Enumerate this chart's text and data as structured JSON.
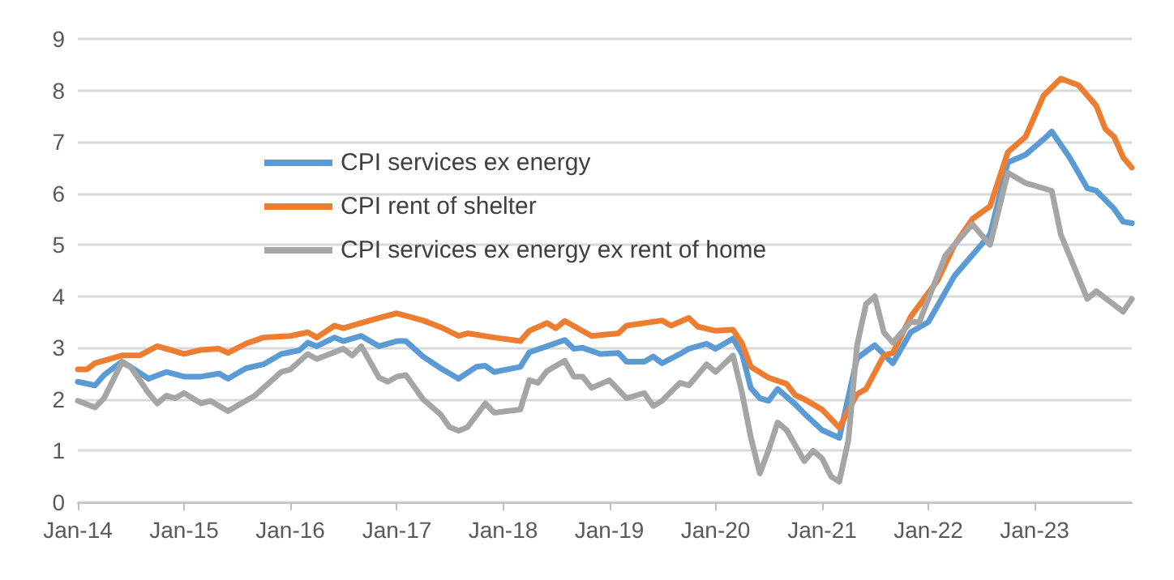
{
  "chart_data": {
    "type": "line",
    "xlim": [
      "2014-01",
      "2023-12"
    ],
    "xticks": [
      {
        "value": "2014-01",
        "label": "Jan-14"
      },
      {
        "value": "2015-01",
        "label": "Jan-15"
      },
      {
        "value": "2016-01",
        "label": "Jan-16"
      },
      {
        "value": "2017-01",
        "label": "Jan-17"
      },
      {
        "value": "2018-01",
        "label": "Jan-18"
      },
      {
        "value": "2019-01",
        "label": "Jan-19"
      },
      {
        "value": "2020-01",
        "label": "Jan-20"
      },
      {
        "value": "2021-01",
        "label": "Jan-21"
      },
      {
        "value": "2022-01",
        "label": "Jan-22"
      },
      {
        "value": "2023-01",
        "label": "Jan-23"
      }
    ],
    "ylim": [
      0,
      9
    ],
    "yticks": [
      0,
      1,
      2,
      3,
      4,
      5,
      6,
      7,
      8,
      9
    ],
    "grid": "y",
    "legend": "top left",
    "marker": "none",
    "line_style": "solid",
    "series": [
      {
        "name": "CPI services ex energy",
        "color": "#5b9bd5",
        "x": [
          "2014-01",
          "2014-03",
          "2014-04",
          "2014-06",
          "2014-07",
          "2014-09",
          "2014-11",
          "2015-01",
          "2015-03",
          "2015-05",
          "2015-06",
          "2015-08",
          "2015-10",
          "2015-12",
          "2016-02",
          "2016-03",
          "2016-04",
          "2016-06",
          "2016-07",
          "2016-09",
          "2016-11",
          "2017-01",
          "2017-02",
          "2017-04",
          "2017-06",
          "2017-08",
          "2017-10",
          "2017-11",
          "2017-12",
          "2018-03",
          "2018-04",
          "2018-06",
          "2018-08",
          "2018-09",
          "2018-10",
          "2018-12",
          "2019-02",
          "2019-03",
          "2019-05",
          "2019-06",
          "2019-07",
          "2019-09",
          "2019-10",
          "2019-12",
          "2020-01",
          "2020-03",
          "2020-04",
          "2020-05",
          "2020-06",
          "2020-07",
          "2020-08",
          "2020-10",
          "2020-11",
          "2021-01",
          "2021-03",
          "2021-05",
          "2021-07",
          "2021-09",
          "2021-11",
          "2022-01",
          "2022-04",
          "2022-08",
          "2022-10",
          "2022-12",
          "2023-02",
          "2023-03",
          "2023-05",
          "2023-07",
          "2023-08",
          "2023-10",
          "2023-11",
          "2023-12"
        ],
        "values": [
          2.34,
          2.27,
          2.47,
          2.73,
          2.63,
          2.4,
          2.53,
          2.44,
          2.44,
          2.5,
          2.4,
          2.6,
          2.68,
          2.88,
          2.95,
          3.1,
          3.03,
          3.2,
          3.13,
          3.23,
          3.03,
          3.13,
          3.13,
          2.83,
          2.6,
          2.4,
          2.63,
          2.65,
          2.53,
          2.63,
          2.91,
          3.03,
          3.15,
          2.98,
          3.0,
          2.88,
          2.9,
          2.73,
          2.73,
          2.83,
          2.7,
          2.88,
          2.98,
          3.08,
          2.98,
          3.18,
          2.88,
          2.22,
          2.02,
          1.97,
          2.2,
          1.9,
          1.72,
          1.4,
          1.25,
          2.8,
          3.05,
          2.7,
          3.3,
          3.5,
          4.4,
          5.2,
          6.6,
          6.75,
          7.05,
          7.2,
          6.7,
          6.1,
          6.05,
          5.7,
          5.45,
          5.42
        ]
      },
      {
        "name": "CPI rent of shelter",
        "color": "#ed7d31",
        "x": [
          "2014-01",
          "2014-02",
          "2014-03",
          "2014-06",
          "2014-08",
          "2014-10",
          "2015-01",
          "2015-03",
          "2015-05",
          "2015-06",
          "2015-08",
          "2015-10",
          "2016-01",
          "2016-03",
          "2016-04",
          "2016-06",
          "2016-07",
          "2016-11",
          "2017-01",
          "2017-04",
          "2017-06",
          "2017-08",
          "2017-09",
          "2017-12",
          "2018-03",
          "2018-04",
          "2018-06",
          "2018-07",
          "2018-08",
          "2018-11",
          "2019-02",
          "2019-03",
          "2019-07",
          "2019-08",
          "2019-10",
          "2019-11",
          "2020-01",
          "2020-03",
          "2020-04",
          "2020-05",
          "2020-07",
          "2020-09",
          "2020-10",
          "2020-11",
          "2021-01",
          "2021-03",
          "2021-05",
          "2021-06",
          "2021-08",
          "2021-09",
          "2021-11",
          "2022-02",
          "2022-04",
          "2022-06",
          "2022-08",
          "2022-10",
          "2022-12",
          "2023-02",
          "2023-04",
          "2023-06",
          "2023-08",
          "2023-09",
          "2023-10",
          "2023-11",
          "2023-12"
        ],
        "values": [
          2.58,
          2.58,
          2.7,
          2.85,
          2.85,
          3.03,
          2.88,
          2.96,
          2.98,
          2.9,
          3.08,
          3.2,
          3.23,
          3.3,
          3.2,
          3.43,
          3.38,
          3.58,
          3.67,
          3.53,
          3.4,
          3.23,
          3.28,
          3.2,
          3.13,
          3.33,
          3.48,
          3.38,
          3.52,
          3.23,
          3.28,
          3.43,
          3.53,
          3.43,
          3.58,
          3.41,
          3.33,
          3.35,
          3.08,
          2.63,
          2.42,
          2.3,
          2.08,
          2.0,
          1.8,
          1.45,
          2.1,
          2.2,
          2.85,
          2.9,
          3.6,
          4.3,
          5.0,
          5.5,
          5.75,
          6.8,
          7.1,
          7.9,
          8.23,
          8.1,
          7.7,
          7.25,
          7.1,
          6.7,
          6.5
        ]
      },
      {
        "name": "CPI services ex energy ex rent of home",
        "color": "#a5a5a5",
        "x": [
          "2014-01",
          "2014-03",
          "2014-04",
          "2014-06",
          "2014-07",
          "2014-09",
          "2014-10",
          "2014-11",
          "2014-12",
          "2015-01",
          "2015-03",
          "2015-04",
          "2015-06",
          "2015-08",
          "2015-09",
          "2015-12",
          "2016-01",
          "2016-03",
          "2016-04",
          "2016-07",
          "2016-08",
          "2016-09",
          "2016-11",
          "2016-12",
          "2017-01",
          "2017-02",
          "2017-04",
          "2017-06",
          "2017-07",
          "2017-08",
          "2017-09",
          "2017-11",
          "2017-12",
          "2018-03",
          "2018-04",
          "2018-05",
          "2018-06",
          "2018-08",
          "2018-09",
          "2018-10",
          "2018-11",
          "2019-01",
          "2019-03",
          "2019-05",
          "2019-06",
          "2019-07",
          "2019-09",
          "2019-10",
          "2019-12",
          "2020-01",
          "2020-03",
          "2020-04",
          "2020-05",
          "2020-06",
          "2020-07",
          "2020-08",
          "2020-09",
          "2020-11",
          "2020-12",
          "2021-01",
          "2021-02",
          "2021-03",
          "2021-04",
          "2021-05",
          "2021-06",
          "2021-07",
          "2021-08",
          "2021-09",
          "2021-11",
          "2021-12",
          "2022-03",
          "2022-06",
          "2022-08",
          "2022-10",
          "2022-12",
          "2023-03",
          "2023-04",
          "2023-07",
          "2023-08",
          "2023-11",
          "2023-12"
        ],
        "values": [
          1.97,
          1.84,
          2.02,
          2.71,
          2.63,
          2.12,
          1.92,
          2.07,
          2.02,
          2.12,
          1.92,
          1.97,
          1.77,
          1.97,
          2.07,
          2.53,
          2.58,
          2.88,
          2.78,
          2.98,
          2.85,
          3.03,
          2.42,
          2.34,
          2.44,
          2.47,
          2.0,
          1.7,
          1.46,
          1.39,
          1.46,
          1.92,
          1.74,
          1.8,
          2.37,
          2.32,
          2.55,
          2.75,
          2.44,
          2.44,
          2.22,
          2.37,
          2.02,
          2.12,
          1.87,
          1.97,
          2.32,
          2.27,
          2.68,
          2.53,
          2.85,
          2.12,
          1.26,
          0.56,
          1.01,
          1.55,
          1.4,
          0.8,
          1.0,
          0.85,
          0.5,
          0.4,
          1.2,
          3.05,
          3.85,
          4.0,
          3.3,
          3.1,
          3.5,
          3.5,
          4.8,
          5.4,
          5.0,
          6.4,
          6.2,
          6.05,
          5.2,
          3.95,
          4.1,
          3.7,
          3.95
        ]
      }
    ]
  }
}
